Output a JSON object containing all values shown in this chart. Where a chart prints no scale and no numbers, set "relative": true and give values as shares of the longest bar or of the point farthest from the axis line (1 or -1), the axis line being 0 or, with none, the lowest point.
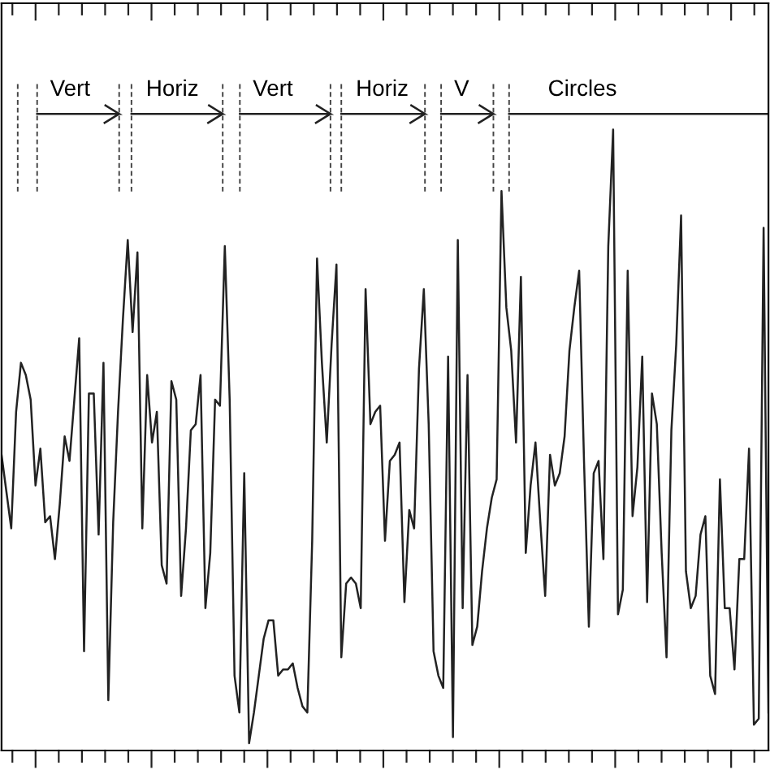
{
  "chart_data": {
    "type": "line",
    "relative": true,
    "categories": [
      null,
      null,
      null,
      null,
      null,
      null,
      null,
      null,
      null,
      null,
      null,
      null,
      null,
      null,
      null,
      null,
      null,
      null,
      null,
      null,
      null,
      null,
      null,
      null,
      null,
      null,
      null,
      null,
      null,
      null,
      null,
      null,
      null,
      null,
      null,
      null,
      null,
      null,
      null,
      null,
      null,
      null,
      null,
      null,
      null,
      null,
      null,
      null,
      null,
      null,
      null,
      null,
      null,
      null,
      null,
      null,
      null,
      null,
      null,
      null,
      null,
      null,
      null,
      null,
      null,
      null,
      null,
      null,
      null,
      null,
      null,
      null,
      null,
      null,
      null,
      null,
      null,
      null,
      null,
      null,
      null,
      null,
      null,
      null,
      null,
      null,
      null,
      null,
      null,
      null,
      null,
      null,
      null,
      null,
      null,
      null,
      null,
      null,
      null,
      null,
      null,
      null,
      null,
      null,
      null,
      null,
      null,
      null,
      null,
      null,
      null,
      null,
      null,
      null,
      null,
      null,
      null,
      null,
      null,
      null,
      null,
      null,
      null,
      null,
      null,
      null,
      null,
      null,
      null,
      null,
      null,
      null,
      null,
      null,
      null,
      null,
      null,
      null,
      null,
      null,
      null,
      null,
      null,
      null,
      null,
      null,
      null,
      null,
      null,
      null,
      null,
      null,
      null,
      null,
      null,
      null,
      null,
      null,
      null
    ],
    "annotations": [
      "Vert",
      "Horiz",
      "Vert",
      "Horiz",
      "V",
      "Circles"
    ],
    "series": [
      {
        "color": "#222222",
        "values": [
          0.47,
          0.41,
          0.35,
          0.54,
          0.62,
          0.6,
          0.56,
          0.42,
          0.48,
          0.36,
          0.37,
          0.3,
          0.39,
          0.5,
          0.46,
          0.56,
          0.66,
          0.15,
          0.57,
          0.57,
          0.34,
          0.62,
          0.07,
          0.36,
          0.54,
          0.69,
          0.82,
          0.67,
          0.8,
          0.35,
          0.6,
          0.49,
          0.54,
          0.29,
          0.26,
          0.59,
          0.56,
          0.24,
          0.35,
          0.51,
          0.52,
          0.6,
          0.22,
          0.31,
          0.56,
          0.55,
          0.81,
          0.56,
          0.11,
          0.05,
          0.44,
          0,
          0.05,
          0.11,
          0.17,
          0.2,
          0.2,
          0.11,
          0.12,
          0.12,
          0.13,
          0.09,
          0.06,
          0.05,
          0.33,
          0.79,
          0.62,
          0.49,
          0.65,
          0.78,
          0.14,
          0.26,
          0.27,
          0.26,
          0.22,
          0.74,
          0.52,
          0.54,
          0.55,
          0.33,
          0.46,
          0.47,
          0.49,
          0.23,
          0.38,
          0.35,
          0.61,
          0.74,
          0.52,
          0.15,
          0.11,
          0.09,
          0.63,
          0.01,
          0.82,
          0.22,
          0.6,
          0.16,
          0.19,
          0.28,
          0.35,
          0.4,
          0.43,
          0.9,
          0.71,
          0.64,
          0.49,
          0.76,
          0.31,
          0.42,
          0.49,
          0.36,
          0.24,
          0.47,
          0.42,
          0.44,
          0.5,
          0.64,
          0.71,
          0.77,
          0.46,
          0.19,
          0.44,
          0.46,
          0.3,
          0.81,
          1.0,
          0.21,
          0.25,
          0.77,
          0.37,
          0.45,
          0.63,
          0.23,
          0.57,
          0.52,
          0.31,
          0.14,
          0.51,
          0.65,
          0.86,
          0.28,
          0.22,
          0.24,
          0.34,
          0.37,
          0.11,
          0.08,
          0.43,
          0.22,
          0.22,
          0.12,
          0.3,
          0.3,
          0.48,
          0.03,
          0.04,
          0.84,
          0.05
        ]
      }
    ]
  }
}
